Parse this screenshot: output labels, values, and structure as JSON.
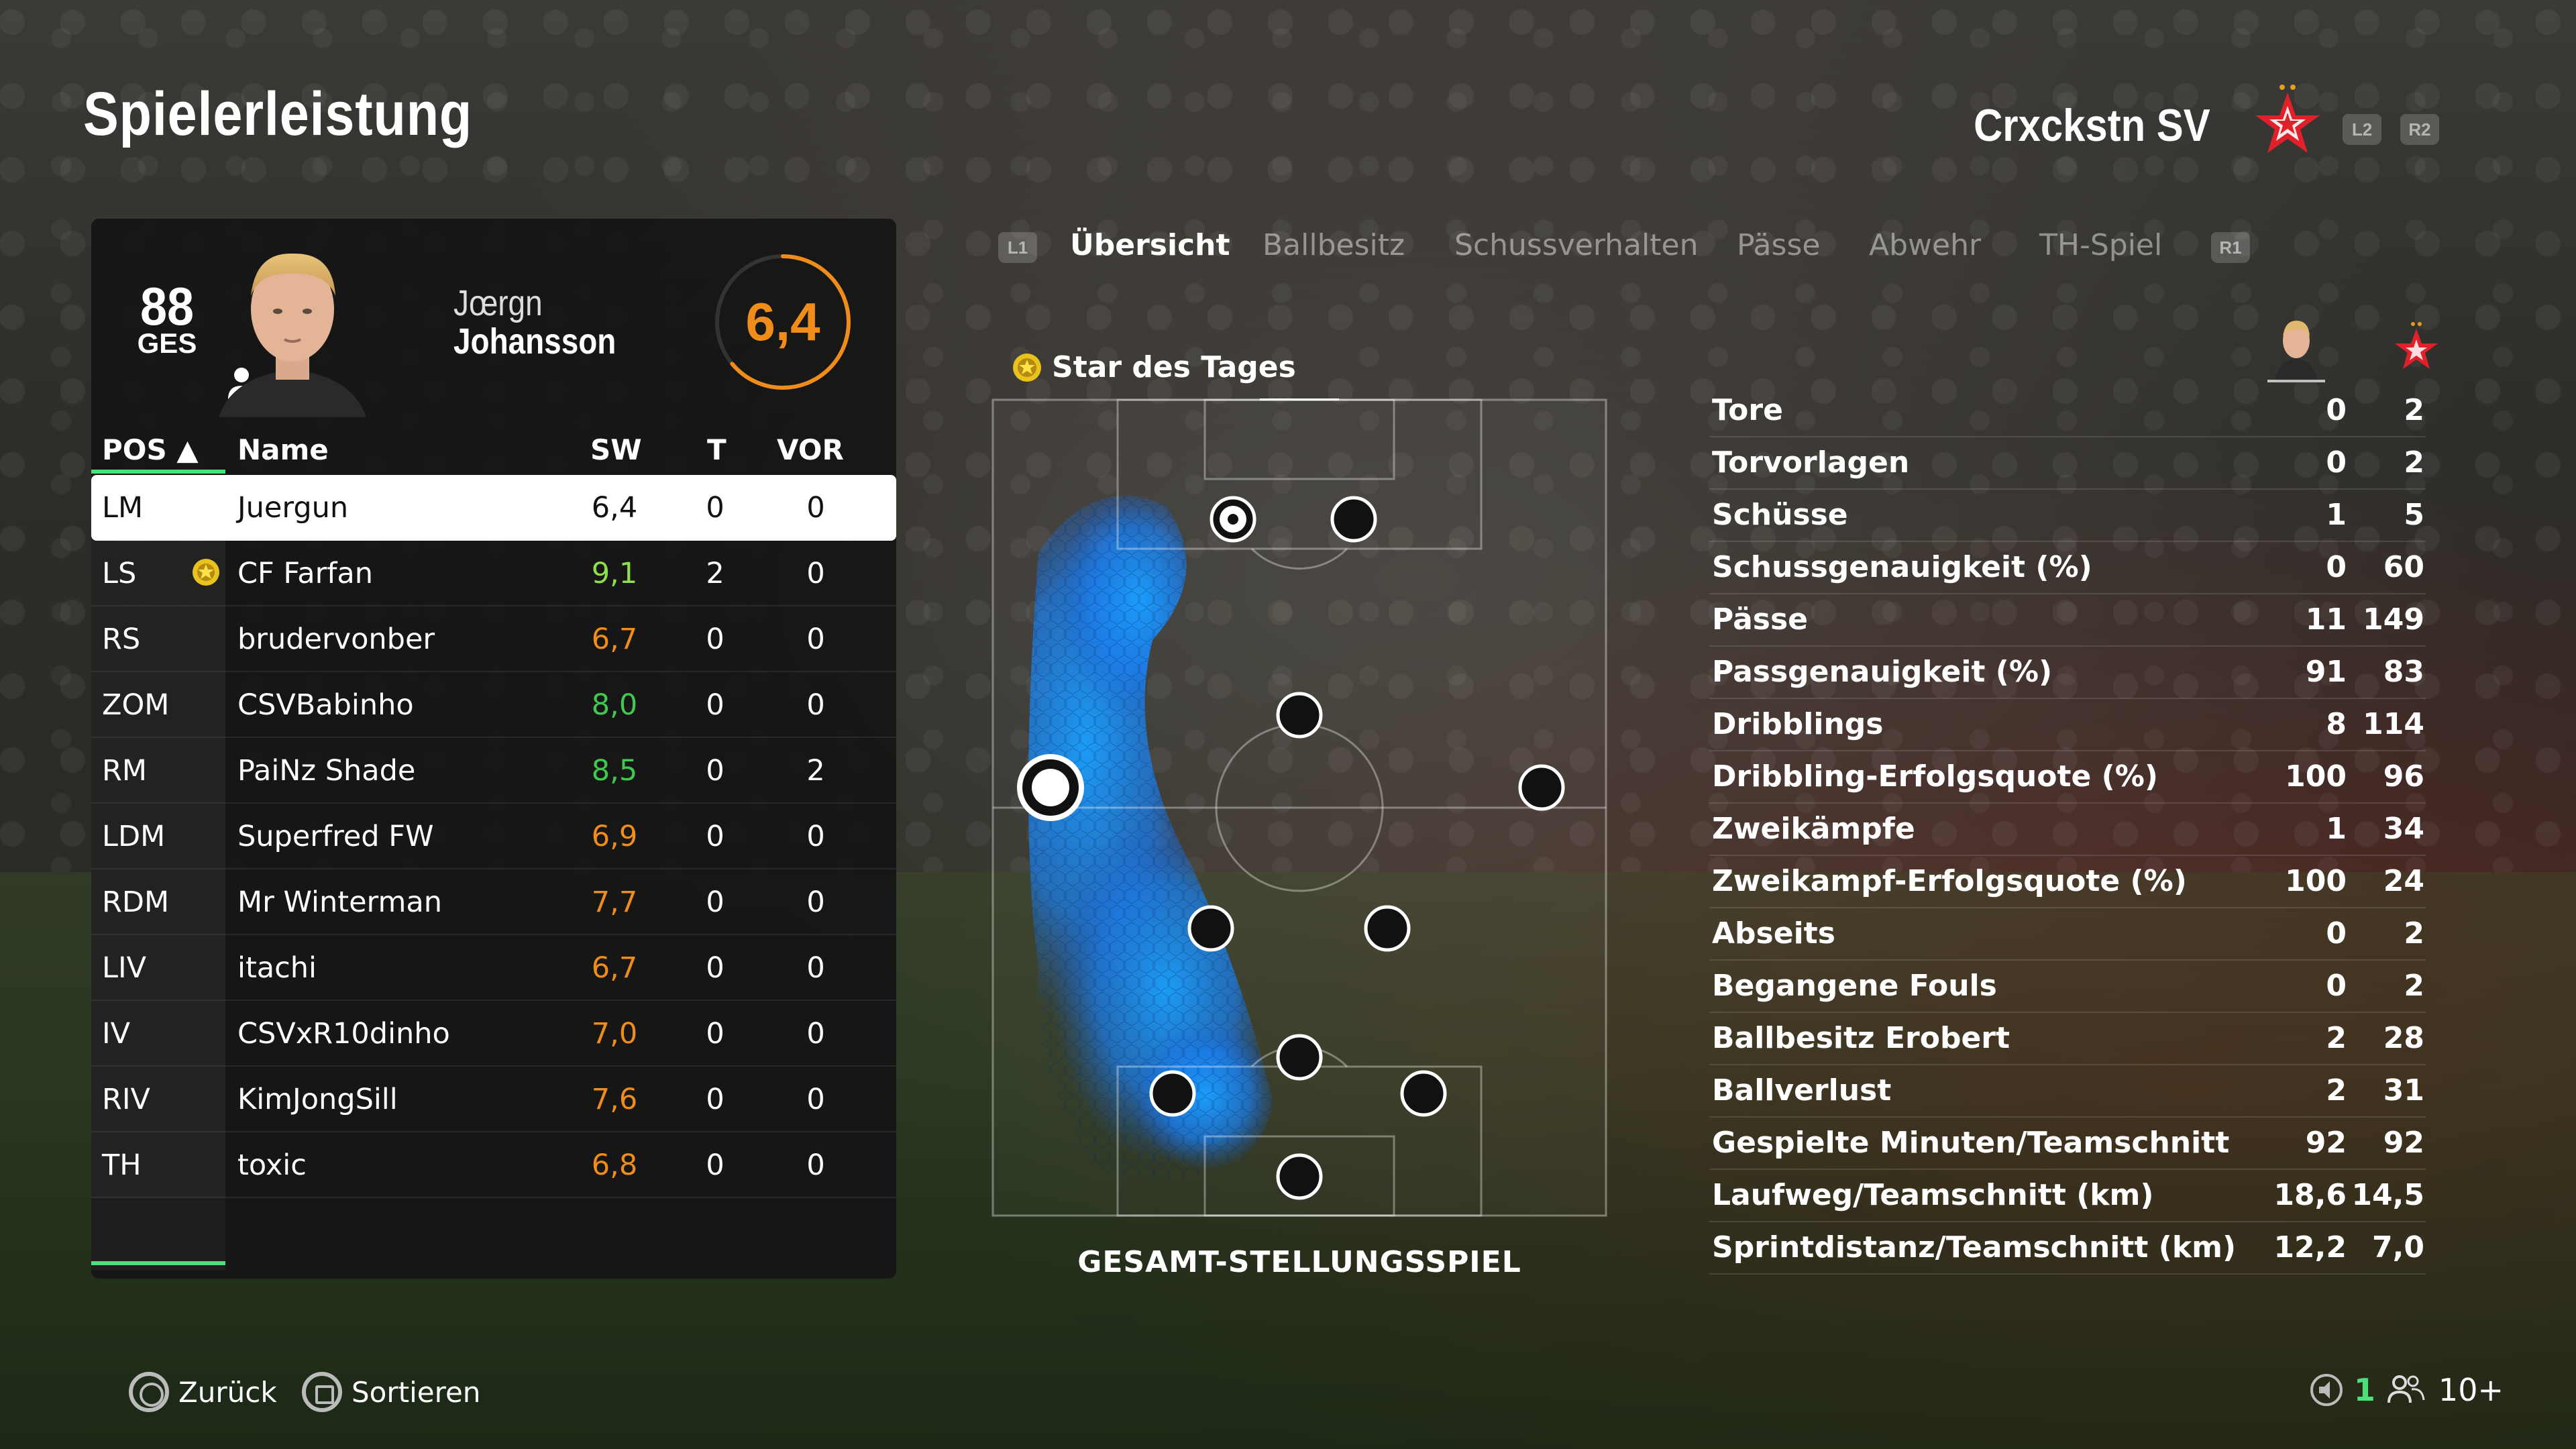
{
  "header": {
    "title": "Spielerleistung",
    "team_name": "Crxckstn SV",
    "btn_l2": "L2",
    "btn_r2": "R2"
  },
  "player": {
    "overall": "88",
    "overall_label": "GES",
    "first_name": "Jœrgn",
    "last_name": "Johansson",
    "rating": "6,4",
    "rating_fraction": 0.64
  },
  "table": {
    "col_pos": "POS ▲",
    "col_name": "Name",
    "col_sw": "SW",
    "col_t": "T",
    "col_vor": "VOR",
    "rows": [
      {
        "pos": "LM",
        "name": "Juergun",
        "sw": "6,4",
        "t": "0",
        "vor": "0",
        "star": false,
        "color": "#111111"
      },
      {
        "pos": "LS",
        "name": "CF Farfan",
        "sw": "9,1",
        "t": "2",
        "vor": "0",
        "star": true,
        "color": "#8ee04a"
      },
      {
        "pos": "RS",
        "name": "brudervonber",
        "sw": "6,7",
        "t": "0",
        "vor": "0",
        "star": false,
        "color": "#f08c1a"
      },
      {
        "pos": "ZOM",
        "name": "CSVBabinho",
        "sw": "8,0",
        "t": "0",
        "vor": "0",
        "star": false,
        "color": "#40c850"
      },
      {
        "pos": "RM",
        "name": "PaiNz Shade",
        "sw": "8,5",
        "t": "0",
        "vor": "2",
        "star": false,
        "color": "#40c850"
      },
      {
        "pos": "LDM",
        "name": "Superfred FW",
        "sw": "6,9",
        "t": "0",
        "vor": "0",
        "star": false,
        "color": "#f08c1a"
      },
      {
        "pos": "RDM",
        "name": "Mr Winterman",
        "sw": "7,7",
        "t": "0",
        "vor": "0",
        "star": false,
        "color": "#f08c1a"
      },
      {
        "pos": "LIV",
        "name": "itachi",
        "sw": "6,7",
        "t": "0",
        "vor": "0",
        "star": false,
        "color": "#f08c1a"
      },
      {
        "pos": "IV",
        "name": "CSVxR10dinho",
        "sw": "7,0",
        "t": "0",
        "vor": "0",
        "star": false,
        "color": "#f08c1a"
      },
      {
        "pos": "RIV",
        "name": "KimJongSill",
        "sw": "7,6",
        "t": "0",
        "vor": "0",
        "star": false,
        "color": "#f08c1a"
      },
      {
        "pos": "TH",
        "name": "toxic",
        "sw": "6,8",
        "t": "0",
        "vor": "0",
        "star": false,
        "color": "#f08c1a"
      }
    ]
  },
  "tabs": {
    "l1": "L1",
    "r1": "R1",
    "items": [
      "Übersicht",
      "Ballbesitz",
      "Schussverhalten",
      "Pässe",
      "Abwehr",
      "TH-Spiel"
    ],
    "active_index": 0
  },
  "heatmap": {
    "star_label": "Star des Tages",
    "caption": "GESAMT-STELLUNGSSPIEL"
  },
  "stats": [
    {
      "label": "Tore",
      "player": "0",
      "team": "2"
    },
    {
      "label": "Torvorlagen",
      "player": "0",
      "team": "2"
    },
    {
      "label": "Schüsse",
      "player": "1",
      "team": "5"
    },
    {
      "label": "Schussgenauigkeit (%)",
      "player": "0",
      "team": "60"
    },
    {
      "label": "Pässe",
      "player": "11",
      "team": "149"
    },
    {
      "label": "Passgenauigkeit (%)",
      "player": "91",
      "team": "83"
    },
    {
      "label": "Dribblings",
      "player": "8",
      "team": "114"
    },
    {
      "label": "Dribbling-Erfolgsquote (%)",
      "player": "100",
      "team": "96"
    },
    {
      "label": "Zweikämpfe",
      "player": "1",
      "team": "34"
    },
    {
      "label": "Zweikampf-Erfolgsquote (%)",
      "player": "100",
      "team": "24"
    },
    {
      "label": "Abseits",
      "player": "0",
      "team": "2"
    },
    {
      "label": "Begangene Fouls",
      "player": "0",
      "team": "2"
    },
    {
      "label": "Ballbesitz Erobert",
      "player": "2",
      "team": "28"
    },
    {
      "label": "Ballverlust",
      "player": "2",
      "team": "31"
    },
    {
      "label": "Gespielte Minuten/Teamschnitt",
      "player": "92",
      "team": "92"
    },
    {
      "label": "Laufweg/Teamschnitt (km)",
      "player": "18,6",
      "team": "14,5"
    },
    {
      "label": "Sprintdistanz/Teamschnitt (km)",
      "player": "12,2",
      "team": "7,0"
    }
  ],
  "footer": {
    "back_label": "Zurück",
    "sort_label": "Sortieren",
    "voice_count": "1",
    "party_count": "10+"
  },
  "colors": {
    "accent_green": "#4be07a",
    "rating_orange": "#f08c1a",
    "heatmap_blue": "#1e90ff",
    "crest_red": "#e0202a"
  }
}
